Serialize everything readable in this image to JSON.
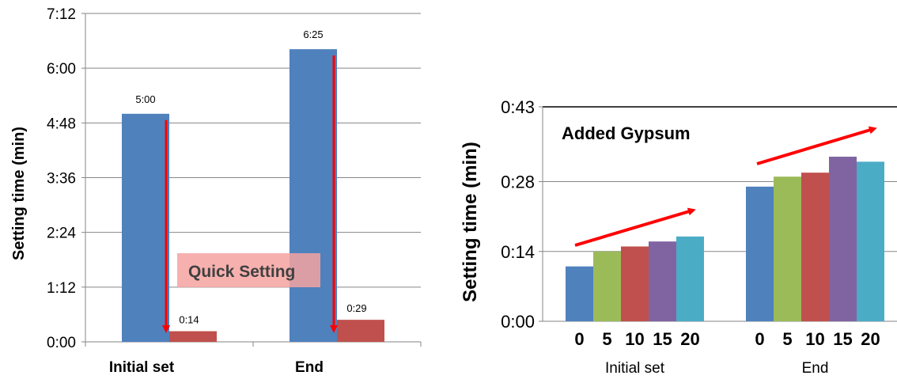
{
  "chart_data": [
    {
      "type": "bar",
      "ylabel": "Setting time (min)",
      "categories": [
        "Initial set",
        "End"
      ],
      "y_ticks": [
        "0:00",
        "1:12",
        "2:24",
        "3:36",
        "4:48",
        "6:00",
        "7:12"
      ],
      "ylim_minutes": [
        0,
        432
      ],
      "series": [
        {
          "values_minutes": [
            300,
            385
          ],
          "data_labels": [
            "5:00",
            "6:25"
          ],
          "color": "#4f81bd"
        },
        {
          "values_minutes": [
            14,
            29
          ],
          "data_labels": [
            "0:14",
            "0:29"
          ],
          "color": "#c0504d"
        }
      ],
      "annotation": {
        "text": "Quick Setting",
        "box_color": "#f4a3a1",
        "arrow_color": "#ff0000"
      },
      "grid": true
    },
    {
      "type": "bar",
      "ylabel": "Setting time (min)",
      "categories": [
        "Initial set",
        "End"
      ],
      "x_sublabels": [
        "0",
        "5",
        "10",
        "15",
        "20"
      ],
      "y_ticks": [
        "0:00",
        "0:14",
        "0:28",
        "0:43"
      ],
      "ylim_minutes": [
        0,
        43
      ],
      "series": [
        {
          "name": "0",
          "values_minutes": [
            11,
            27
          ],
          "color": "#4f81bd"
        },
        {
          "name": "5",
          "values_minutes": [
            14,
            29
          ],
          "color": "#9bbb59"
        },
        {
          "name": "10",
          "values_minutes": [
            15,
            29.8
          ],
          "color": "#c0504d"
        },
        {
          "name": "15",
          "values_minutes": [
            16,
            33
          ],
          "color": "#8064a2"
        },
        {
          "name": "20",
          "values_minutes": [
            17,
            32
          ],
          "color": "#4bacc6"
        }
      ],
      "annotation": {
        "text": "Added Gypsum",
        "arrow_color": "#ff0000"
      },
      "grid": true
    }
  ]
}
